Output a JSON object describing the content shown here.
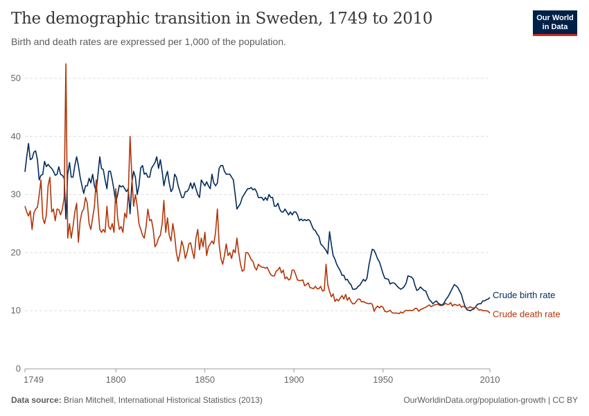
{
  "header": {
    "title": "The demographic transition in Sweden, 1749 to 2010",
    "subtitle": "Birth and death rates are expressed per 1,000 of the population.",
    "logo_line1": "Our World",
    "logo_line2": "in Data"
  },
  "footer": {
    "source_label": "Data source:",
    "source_text": "Brian Mitchell, International Historical Statistics (2013)",
    "url_license": "OurWorldinData.org/population-growth | CC BY"
  },
  "chart_data": {
    "type": "line",
    "title": "The demographic transition in Sweden, 1749 to 2010",
    "xlabel": "",
    "ylabel": "",
    "xlim": [
      1749,
      2010
    ],
    "ylim": [
      0,
      52
    ],
    "x_ticks": [
      "1749",
      "1800",
      "1850",
      "1900",
      "1950",
      "2010"
    ],
    "y_ticks": [
      "0",
      "10",
      "20",
      "30",
      "40",
      "50"
    ],
    "grid": "horizontal dashed",
    "legend": "right, labels at line ends",
    "x": [
      1749,
      1750,
      1751,
      1752,
      1753,
      1754,
      1755,
      1756,
      1757,
      1758,
      1759,
      1760,
      1761,
      1762,
      1763,
      1764,
      1765,
      1766,
      1767,
      1768,
      1769,
      1770,
      1771,
      1772,
      1773,
      1774,
      1775,
      1776,
      1777,
      1778,
      1779,
      1780,
      1781,
      1782,
      1783,
      1784,
      1785,
      1786,
      1787,
      1788,
      1789,
      1790,
      1791,
      1792,
      1793,
      1794,
      1795,
      1796,
      1797,
      1798,
      1799,
      1800,
      1801,
      1802,
      1803,
      1804,
      1805,
      1806,
      1807,
      1808,
      1809,
      1810,
      1811,
      1812,
      1813,
      1814,
      1815,
      1816,
      1817,
      1818,
      1819,
      1820,
      1821,
      1822,
      1823,
      1824,
      1825,
      1826,
      1827,
      1828,
      1829,
      1830,
      1831,
      1832,
      1833,
      1834,
      1835,
      1836,
      1837,
      1838,
      1839,
      1840,
      1841,
      1842,
      1843,
      1844,
      1845,
      1846,
      1847,
      1848,
      1849,
      1850,
      1851,
      1852,
      1853,
      1854,
      1855,
      1856,
      1857,
      1858,
      1859,
      1860,
      1861,
      1862,
      1863,
      1864,
      1865,
      1866,
      1867,
      1868,
      1869,
      1870,
      1871,
      1872,
      1873,
      1874,
      1875,
      1876,
      1877,
      1878,
      1879,
      1880,
      1881,
      1882,
      1883,
      1884,
      1885,
      1886,
      1887,
      1888,
      1889,
      1890,
      1891,
      1892,
      1893,
      1894,
      1895,
      1896,
      1897,
      1898,
      1899,
      1900,
      1901,
      1902,
      1903,
      1904,
      1905,
      1906,
      1907,
      1908,
      1909,
      1910,
      1911,
      1912,
      1913,
      1914,
      1915,
      1916,
      1917,
      1918,
      1919,
      1920,
      1921,
      1922,
      1923,
      1924,
      1925,
      1926,
      1927,
      1928,
      1929,
      1930,
      1931,
      1932,
      1933,
      1934,
      1935,
      1936,
      1937,
      1938,
      1939,
      1940,
      1941,
      1942,
      1943,
      1944,
      1945,
      1946,
      1947,
      1948,
      1949,
      1950,
      1951,
      1952,
      1953,
      1954,
      1955,
      1956,
      1957,
      1958,
      1959,
      1960,
      1961,
      1962,
      1963,
      1964,
      1965,
      1966,
      1967,
      1968,
      1969,
      1970,
      1971,
      1972,
      1973,
      1974,
      1975,
      1976,
      1977,
      1978,
      1979,
      1980,
      1981,
      1982,
      1983,
      1984,
      1985,
      1986,
      1987,
      1988,
      1989,
      1990,
      1991,
      1992,
      1993,
      1994,
      1995,
      1996,
      1997,
      1998,
      1999,
      2000,
      2001,
      2002,
      2003,
      2004,
      2005,
      2006,
      2007,
      2008,
      2009,
      2010
    ],
    "series": [
      {
        "name": "Crude birth rate",
        "color": "#00295b",
        "values": [
          33.9,
          36.5,
          38.8,
          36,
          36.2,
          37.3,
          37.5,
          36,
          32.5,
          33.3,
          33.5,
          35.7,
          34.8,
          35.2,
          34.8,
          34.5,
          34,
          33.3,
          33.5,
          34.8,
          33.5,
          33.3,
          32.8,
          25.8,
          33.5,
          35.5,
          33,
          33,
          35,
          36.5,
          35,
          33,
          31.5,
          30.2,
          31.5,
          31.5,
          32.8,
          32,
          33.5,
          31.5,
          30.5,
          33.5,
          36.5,
          34.5,
          34.3,
          32.5,
          31,
          34,
          34,
          32.5,
          30.8,
          28.6,
          30,
          31.6,
          31.3,
          31.5,
          31,
          30.5,
          31,
          26.7,
          32,
          34,
          33,
          30,
          31.5,
          34.6,
          35,
          33.5,
          33.7,
          33,
          33,
          34.5,
          35,
          35.5,
          36.5,
          34.5,
          36,
          34,
          31.5,
          33,
          34,
          32,
          30.5,
          31,
          33.5,
          33,
          31.5,
          30.5,
          29.5,
          29.5,
          30.5,
          30.5,
          31,
          32,
          31,
          32,
          31,
          30,
          29.5,
          32.5,
          32,
          31.5,
          32.2,
          31.5,
          31,
          33.5,
          32,
          31.5,
          32,
          34.5,
          35,
          35,
          34,
          33.5,
          33.5,
          33.5,
          33,
          32.5,
          30,
          27.5,
          28,
          28.5,
          29.5,
          30,
          30.5,
          31,
          31,
          31.2,
          30.8,
          31,
          30.5,
          29.5,
          29.5,
          29.5,
          29,
          29.5,
          29,
          30,
          29.5,
          29.5,
          28,
          28,
          28.5,
          27.5,
          27,
          27,
          27.5,
          27,
          26.5,
          27,
          26.5,
          27,
          27,
          26.5,
          25.5,
          25.8,
          25.5,
          25.7,
          25.5,
          25.7,
          25.5,
          24.7,
          24,
          23.8,
          23.2,
          22.8,
          21.5,
          21.2,
          20.8,
          20.4,
          19.8,
          23.6,
          21.4,
          19.5,
          18.9,
          18,
          17.4,
          16.9,
          16.1,
          16.1,
          15.3,
          15.4,
          14.8,
          14.5,
          13.7,
          13.7,
          13.8,
          14.2,
          14.4,
          14.9,
          15.4,
          15.1,
          15.6,
          17.7,
          19.3,
          20.6,
          20.4,
          19.7,
          18.9,
          18.4,
          17.4,
          16.4,
          15.6,
          15.5,
          15.4,
          14.6,
          14.8,
          14.8,
          14.6,
          14.2,
          13.9,
          13.7,
          13.9,
          14.2,
          14.8,
          16.0,
          15.9,
          15.8,
          15.4,
          14.3,
          13.5,
          13.7,
          14.1,
          13.8,
          13.5,
          13.4,
          12.6,
          11.9,
          11.6,
          11.2,
          11.5,
          11.7,
          11.3,
          11.1,
          11.0,
          11.2,
          11.8,
          12.2,
          12.7,
          13.3,
          13.9,
          14.5,
          14.3,
          14.0,
          13.4,
          12.8,
          11.7,
          10.8,
          10.2,
          10.1,
          10.0,
          10.2,
          10.3,
          10.7,
          11.1,
          11.2,
          11.2,
          11.7,
          11.7,
          11.9,
          12.0,
          12.3
        ]
      },
      {
        "name": "Crude death rate",
        "color": "#b13507",
        "values": [
          28,
          27,
          26.3,
          27.2,
          24,
          26.8,
          27.5,
          27.8,
          30,
          32.5,
          26,
          25,
          26.5,
          31.5,
          33,
          27,
          27.5,
          25.5,
          27.5,
          27.4,
          26.5,
          27.5,
          29.5,
          52.5,
          22.5,
          25,
          22.5,
          24.5,
          27,
          28.5,
          21.8,
          25.5,
          27,
          27.5,
          29.5,
          28.5,
          25,
          24,
          26,
          28,
          32.5,
          28,
          24,
          23.5,
          24,
          23.5,
          28,
          24.5,
          24,
          25,
          23.5,
          31,
          26,
          24,
          24.5,
          23.5,
          26.8,
          26,
          30,
          40,
          33,
          28,
          30,
          28,
          25,
          24,
          23,
          22.5,
          24.5,
          27.5,
          25.5,
          25.7,
          24,
          21,
          21.5,
          22.5,
          23,
          25,
          29,
          23.5,
          26,
          23,
          22,
          25,
          23,
          20,
          18.5,
          20,
          22,
          21,
          19,
          20,
          21.5,
          21.7,
          20.2,
          19,
          22.5,
          24,
          20.5,
          22.5,
          21,
          23.5,
          19.5,
          21,
          21.5,
          22,
          21.5,
          23.5,
          27.5,
          21.5,
          19,
          18,
          19.5,
          21.5,
          19.5,
          20,
          19,
          20.5,
          20,
          22.5,
          20,
          18,
          16.8,
          17,
          20,
          20,
          19.5,
          18.8,
          18.5,
          17.5,
          17,
          18,
          17.7,
          17.5,
          17.5,
          17.3,
          17.5,
          16.8,
          16.2,
          16,
          16,
          16.8,
          17,
          17.5,
          16.5,
          17,
          15.5,
          15.8,
          15.3,
          15.5,
          17,
          17,
          16.2,
          15.3,
          15.2,
          15.2,
          15.3,
          14.3,
          14.5,
          14.8,
          14,
          13.9,
          13.8,
          14.2,
          13.8,
          13.8,
          14.2,
          13.4,
          13.5,
          18,
          14.5,
          13.3,
          12.4,
          12.9,
          11.6,
          12,
          11.7,
          12.2,
          12.6,
          12,
          12.8,
          11.8,
          12.3,
          11.6,
          11.2,
          11.2,
          11.6,
          12,
          12,
          11.5,
          11.6,
          11.4,
          11.3,
          11.2,
          11.3,
          11.1,
          9.9,
          10.5,
          10.8,
          10.5,
          10.8,
          10.6,
          9.9,
          9.8,
          9.9,
          10.1,
          9.7,
          9.6,
          9.6,
          9.6,
          9.5,
          9.8,
          9.6,
          9.9,
          10.1,
          10.0,
          10.1,
          10.0,
          10.1,
          10.4,
          10.4,
          9.9,
          10.2,
          10.3,
          10.5,
          10.6,
          10.8,
          11.0,
          10.7,
          10.9,
          11.0,
          11.1,
          11.1,
          10.9,
          10.9,
          11.0,
          11.3,
          11.1,
          11.1,
          11.4,
          10.8,
          11.1,
          11.0,
          10.9,
          11.1,
          10.6,
          10.8,
          10.6,
          10.5,
          10.5,
          10.7,
          10.5,
          10.5,
          10.6,
          10.4,
          10.1,
          10.2,
          10.0,
          10.0,
          10.0,
          9.9,
          9.6
        ]
      }
    ]
  }
}
